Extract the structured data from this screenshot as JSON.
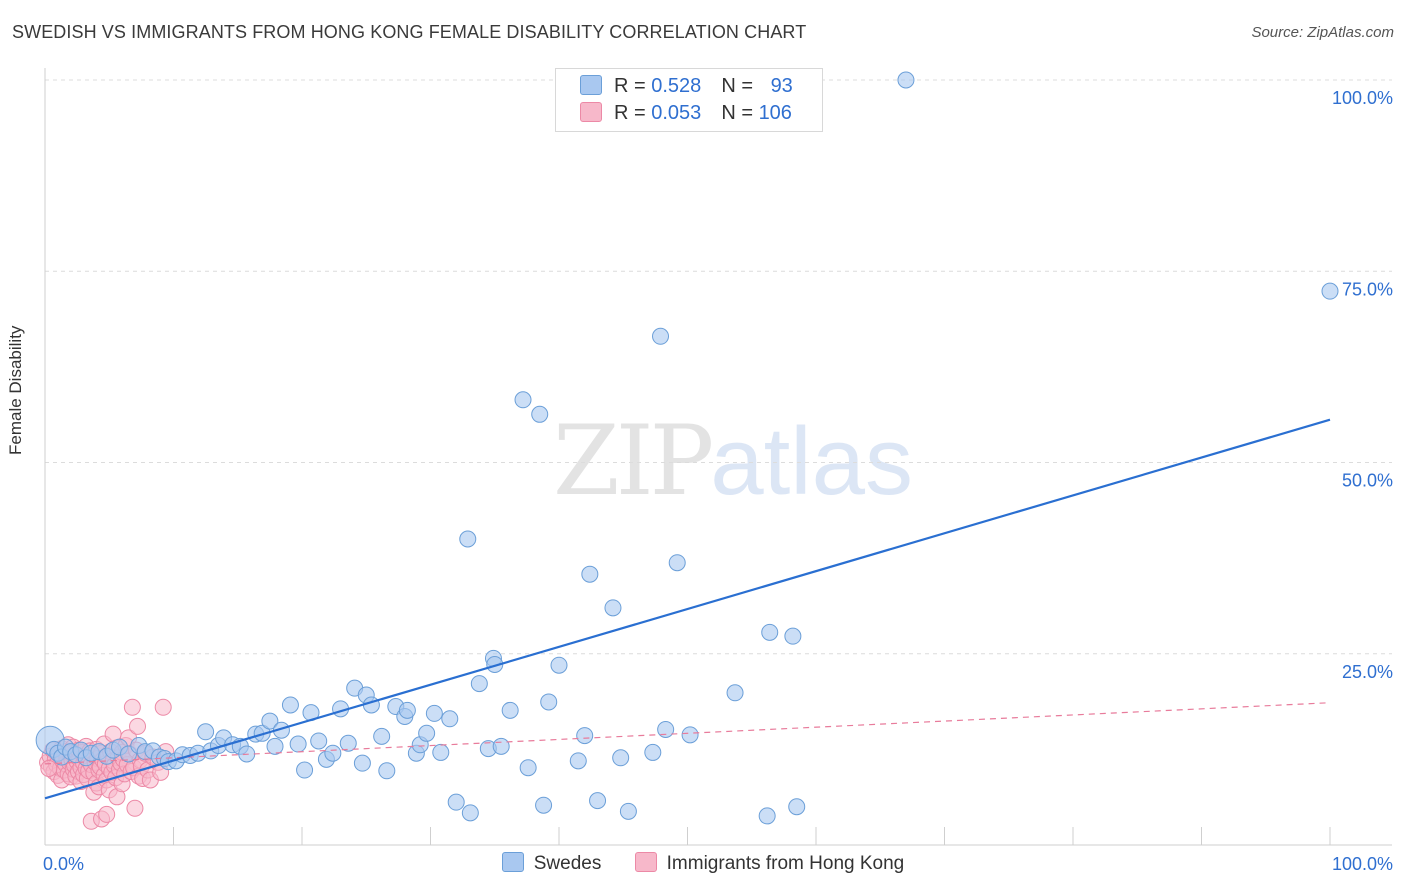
{
  "title": "SWEDISH VS IMMIGRANTS FROM HONG KONG FEMALE DISABILITY CORRELATION CHART",
  "source": "Source: ZipAtlas.com",
  "watermark": {
    "zip": "ZIP",
    "atlas": "atlas"
  },
  "legend": {
    "rows": [
      {
        "r_label": "R = ",
        "r_value": "0.528",
        "n_label": "N = ",
        "n_value": "93"
      },
      {
        "r_label": "R = ",
        "r_value": "0.053",
        "n_label": "N = ",
        "n_value": "106"
      }
    ]
  },
  "bottom_legend": [
    "Swedes",
    "Immigrants from Hong Kong"
  ],
  "colors": {
    "blue_fill": "#a9c8f0",
    "blue_stroke": "#6b9fd8",
    "blue_line": "#2a6fd1",
    "pink_fill": "#f7b8ca",
    "pink_stroke": "#ec89a6",
    "pink_line": "#e87b9b",
    "tick_text": "#2f6fd0"
  },
  "chart_data": {
    "type": "scatter",
    "title": "SWEDISH VS IMMIGRANTS FROM HONG KONG FEMALE DISABILITY CORRELATION CHART",
    "xlabel": "",
    "ylabel": "Female Disability",
    "xlim": [
      0,
      100
    ],
    "ylim": [
      0,
      100
    ],
    "x_tick_labels": [
      "0.0%",
      "100.0%"
    ],
    "y_ticks": [
      25,
      50,
      75,
      100
    ],
    "y_tick_labels": [
      "25.0%",
      "50.0%",
      "75.0%",
      "100.0%"
    ],
    "grid": true,
    "series": [
      {
        "name": "Swedes",
        "r": 0.528,
        "n": 93,
        "trend": {
          "x": [
            0,
            100
          ],
          "y": [
            6.1,
            55.6
          ]
        },
        "points": [
          [
            0.4,
            13.7
          ],
          [
            0.7,
            12.5
          ],
          [
            1.0,
            12.0
          ],
          [
            1.3,
            11.5
          ],
          [
            1.6,
            12.8
          ],
          [
            2.0,
            12.2
          ],
          [
            2.4,
            11.8
          ],
          [
            2.8,
            12.4
          ],
          [
            3.2,
            11.4
          ],
          [
            3.6,
            12.0
          ],
          [
            4.2,
            12.2
          ],
          [
            4.8,
            11.6
          ],
          [
            5.3,
            12.4
          ],
          [
            5.8,
            12.8
          ],
          [
            6.5,
            11.9
          ],
          [
            7.3,
            13.0
          ],
          [
            7.8,
            12.2
          ],
          [
            8.4,
            12.3
          ],
          [
            8.9,
            11.5
          ],
          [
            9.3,
            11.3
          ],
          [
            9.6,
            10.9
          ],
          [
            10.2,
            11.0
          ],
          [
            10.7,
            11.8
          ],
          [
            11.3,
            11.7
          ],
          [
            11.9,
            12.0
          ],
          [
            12.5,
            14.8
          ],
          [
            12.9,
            12.3
          ],
          [
            13.5,
            13.0
          ],
          [
            13.9,
            14.0
          ],
          [
            14.6,
            13.1
          ],
          [
            15.2,
            12.9
          ],
          [
            15.7,
            11.9
          ],
          [
            16.4,
            14.5
          ],
          [
            16.9,
            14.6
          ],
          [
            17.5,
            16.2
          ],
          [
            17.9,
            12.9
          ],
          [
            18.4,
            15.0
          ],
          [
            19.1,
            18.3
          ],
          [
            19.7,
            13.2
          ],
          [
            20.2,
            9.8
          ],
          [
            20.7,
            17.3
          ],
          [
            21.3,
            13.6
          ],
          [
            21.9,
            11.2
          ],
          [
            22.4,
            12.0
          ],
          [
            23.0,
            17.8
          ],
          [
            23.6,
            13.3
          ],
          [
            24.1,
            20.5
          ],
          [
            24.7,
            10.7
          ],
          [
            25.0,
            19.6
          ],
          [
            25.4,
            18.3
          ],
          [
            26.2,
            14.2
          ],
          [
            26.6,
            9.7
          ],
          [
            27.3,
            18.1
          ],
          [
            28.0,
            16.8
          ],
          [
            28.2,
            17.6
          ],
          [
            28.9,
            12.0
          ],
          [
            29.2,
            13.1
          ],
          [
            29.7,
            14.6
          ],
          [
            30.3,
            17.2
          ],
          [
            30.8,
            12.1
          ],
          [
            31.5,
            16.5
          ],
          [
            32.0,
            5.6
          ],
          [
            32.9,
            40.0
          ],
          [
            33.1,
            4.2
          ],
          [
            33.8,
            21.1
          ],
          [
            34.5,
            12.6
          ],
          [
            34.9,
            24.4
          ],
          [
            35.0,
            23.6
          ],
          [
            35.5,
            12.9
          ],
          [
            36.2,
            17.6
          ],
          [
            37.2,
            58.2
          ],
          [
            37.6,
            10.1
          ],
          [
            38.5,
            56.3
          ],
          [
            38.8,
            5.2
          ],
          [
            39.2,
            18.7
          ],
          [
            40.0,
            23.5
          ],
          [
            41.5,
            11.0
          ],
          [
            42.0,
            14.3
          ],
          [
            42.4,
            35.4
          ],
          [
            43.0,
            5.8
          ],
          [
            44.2,
            31.0
          ],
          [
            44.8,
            11.4
          ],
          [
            45.4,
            4.4
          ],
          [
            47.3,
            12.1
          ],
          [
            47.9,
            66.5
          ],
          [
            48.3,
            15.1
          ],
          [
            49.2,
            36.9
          ],
          [
            50.2,
            14.4
          ],
          [
            53.7,
            19.9
          ],
          [
            56.2,
            3.8
          ],
          [
            56.4,
            27.8
          ],
          [
            58.2,
            27.3
          ],
          [
            58.5,
            5.0
          ]
        ],
        "top_points": [
          [
            67.0,
            100.0
          ],
          [
            100.0,
            72.4
          ]
        ]
      },
      {
        "name": "Immigrants from Hong Kong",
        "r": 0.053,
        "n": 106,
        "trend": {
          "x": [
            0,
            100
          ],
          "y": [
            10.6,
            18.6
          ]
        },
        "points": [
          [
            0.2,
            10.8
          ],
          [
            0.4,
            11.6
          ],
          [
            0.5,
            10.2
          ],
          [
            0.6,
            12.4
          ],
          [
            0.7,
            9.6
          ],
          [
            0.8,
            11.2
          ],
          [
            0.9,
            10.5
          ],
          [
            1.0,
            12.0
          ],
          [
            1.0,
            9.1
          ],
          [
            1.1,
            11.8
          ],
          [
            1.2,
            10.0
          ],
          [
            1.3,
            12.6
          ],
          [
            1.3,
            8.5
          ],
          [
            1.4,
            11.0
          ],
          [
            1.5,
            9.8
          ],
          [
            1.6,
            12.2
          ],
          [
            1.6,
            10.6
          ],
          [
            1.7,
            11.4
          ],
          [
            1.8,
            9.3
          ],
          [
            1.8,
            13.1
          ],
          [
            1.9,
            10.8
          ],
          [
            2.0,
            12.0
          ],
          [
            2.0,
            8.9
          ],
          [
            2.1,
            11.1
          ],
          [
            2.2,
            9.9
          ],
          [
            2.2,
            12.8
          ],
          [
            2.3,
            10.4
          ],
          [
            2.4,
            11.7
          ],
          [
            2.4,
            9.0
          ],
          [
            2.5,
            10.9
          ],
          [
            2.6,
            12.4
          ],
          [
            2.6,
            9.6
          ],
          [
            2.7,
            11.2
          ],
          [
            2.8,
            10.1
          ],
          [
            2.8,
            8.3
          ],
          [
            2.9,
            12.1
          ],
          [
            3.0,
            10.7
          ],
          [
            3.0,
            9.2
          ],
          [
            3.1,
            11.5
          ],
          [
            3.2,
            10.0
          ],
          [
            3.2,
            12.9
          ],
          [
            3.3,
            8.7
          ],
          [
            3.4,
            11.0
          ],
          [
            3.4,
            9.7
          ],
          [
            3.5,
            12.3
          ],
          [
            3.6,
            10.5
          ],
          [
            3.6,
            3.1
          ],
          [
            3.7,
            11.8
          ],
          [
            3.8,
            9.4
          ],
          [
            3.8,
            6.9
          ],
          [
            3.9,
            10.8
          ],
          [
            4.0,
            12.5
          ],
          [
            4.0,
            8.1
          ],
          [
            4.1,
            11.3
          ],
          [
            4.2,
            9.8
          ],
          [
            4.2,
            7.6
          ],
          [
            4.3,
            10.2
          ],
          [
            4.4,
            12.0
          ],
          [
            4.4,
            3.4
          ],
          [
            4.5,
            11.1
          ],
          [
            4.6,
            9.1
          ],
          [
            4.6,
            13.2
          ],
          [
            4.7,
            10.6
          ],
          [
            4.8,
            8.5
          ],
          [
            4.8,
            4.0
          ],
          [
            4.9,
            11.7
          ],
          [
            5.0,
            10.0
          ],
          [
            5.0,
            7.2
          ],
          [
            5.1,
            12.2
          ],
          [
            5.2,
            9.5
          ],
          [
            5.3,
            11.0
          ],
          [
            5.3,
            14.5
          ],
          [
            5.4,
            10.4
          ],
          [
            5.5,
            8.8
          ],
          [
            5.6,
            12.7
          ],
          [
            5.6,
            6.3
          ],
          [
            5.7,
            11.4
          ],
          [
            5.8,
            9.9
          ],
          [
            5.9,
            10.7
          ],
          [
            6.0,
            12.1
          ],
          [
            6.0,
            8.0
          ],
          [
            6.1,
            11.2
          ],
          [
            6.2,
            9.3
          ],
          [
            6.3,
            13.0
          ],
          [
            6.4,
            10.5
          ],
          [
            6.5,
            14.0
          ],
          [
            6.6,
            11.9
          ],
          [
            6.7,
            9.6
          ],
          [
            6.8,
            18.0
          ],
          [
            6.9,
            10.1
          ],
          [
            7.0,
            4.8
          ],
          [
            7.1,
            12.4
          ],
          [
            7.2,
            15.5
          ],
          [
            7.3,
            9.0
          ],
          [
            7.4,
            11.1
          ],
          [
            7.5,
            10.3
          ],
          [
            7.6,
            8.7
          ],
          [
            7.8,
            12.0
          ],
          [
            8.0,
            9.8
          ],
          [
            8.2,
            8.5
          ],
          [
            8.4,
            11.5
          ],
          [
            8.8,
            10.8
          ],
          [
            9.0,
            9.5
          ],
          [
            9.2,
            18.0
          ],
          [
            9.4,
            12.2
          ],
          [
            0.3,
            10.0
          ]
        ]
      }
    ]
  }
}
